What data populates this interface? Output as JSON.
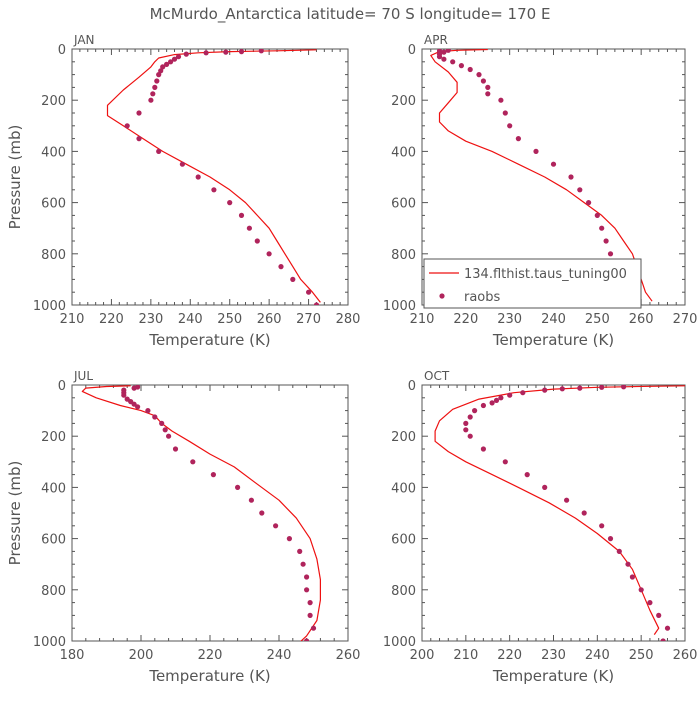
{
  "figure": {
    "title": "McMurdo_Antarctica   latitude=  70 S  longitude=  170 E"
  },
  "colors": {
    "model": "#ee1111",
    "obs": "#b0245c",
    "frame": "#555555",
    "text": "#555555"
  },
  "legend": {
    "model_label": "134.flthist.taus_tuning00",
    "obs_label": "raobs"
  },
  "chart_data": [
    {
      "type": "line",
      "panel_label": "JAN",
      "xlabel": "Temperature  (K)",
      "ylabel": "Pressure (mb)",
      "xlim": [
        210,
        280
      ],
      "ylim": [
        1000,
        0
      ],
      "xticks": [
        210,
        220,
        230,
        240,
        250,
        260,
        270,
        280
      ],
      "yticks": [
        0,
        200,
        400,
        600,
        800,
        1000
      ],
      "series": [
        {
          "name": "134.flthist.taus_tuning00",
          "kind": "line",
          "points": [
            [
              272,
              3
            ],
            [
              262,
              7
            ],
            [
              250,
              10
            ],
            [
              242,
              15
            ],
            [
              236,
              22
            ],
            [
              232,
              35
            ],
            [
              231,
              50
            ],
            [
              230,
              70
            ],
            [
              227,
              110
            ],
            [
              223,
              160
            ],
            [
              219,
              220
            ],
            [
              219,
              260
            ],
            [
              223,
              300
            ],
            [
              228,
              350
            ],
            [
              233,
              400
            ],
            [
              239,
              450
            ],
            [
              245,
              500
            ],
            [
              250,
              550
            ],
            [
              254,
              600
            ],
            [
              257,
              650
            ],
            [
              260,
              700
            ],
            [
              262,
              750
            ],
            [
              264,
              800
            ],
            [
              266,
              850
            ],
            [
              268,
              900
            ],
            [
              271,
              950
            ],
            [
              273,
              990
            ]
          ]
        },
        {
          "name": "raobs",
          "kind": "scatter",
          "points": [
            [
              272,
              1000
            ],
            [
              270,
              950
            ],
            [
              266,
              900
            ],
            [
              263,
              850
            ],
            [
              260,
              800
            ],
            [
              257,
              750
            ],
            [
              255,
              700
            ],
            [
              253,
              650
            ],
            [
              250,
              600
            ],
            [
              246,
              550
            ],
            [
              242,
              500
            ],
            [
              238,
              450
            ],
            [
              232,
              400
            ],
            [
              227,
              350
            ],
            [
              224,
              300
            ],
            [
              227,
              250
            ],
            [
              230,
              200
            ],
            [
              230.5,
              175
            ],
            [
              231,
              150
            ],
            [
              231.5,
              125
            ],
            [
              232,
              100
            ],
            [
              232.5,
              85
            ],
            [
              233,
              70
            ],
            [
              234,
              60
            ],
            [
              235,
              50
            ],
            [
              236,
              40
            ],
            [
              237,
              30
            ],
            [
              239,
              20
            ],
            [
              244,
              15
            ],
            [
              249,
              12
            ],
            [
              253,
              10
            ],
            [
              258,
              7
            ]
          ]
        }
      ]
    },
    {
      "type": "line",
      "panel_label": "APR",
      "xlabel": "Temperature  (K)",
      "ylabel": "",
      "xlim": [
        210,
        270
      ],
      "ylim": [
        1000,
        0
      ],
      "xticks": [
        210,
        220,
        230,
        240,
        250,
        260,
        270
      ],
      "yticks": [
        0,
        200,
        400,
        600,
        800,
        1000
      ],
      "legend_position": "lower-right",
      "series": [
        {
          "name": "134.flthist.taus_tuning00",
          "kind": "line",
          "points": [
            [
              225,
              2
            ],
            [
              218,
              5
            ],
            [
              214,
              10
            ],
            [
              212,
              25
            ],
            [
              213,
              50
            ],
            [
              216,
              90
            ],
            [
              218,
              130
            ],
            [
              218,
              170
            ],
            [
              216,
              210
            ],
            [
              214,
              250
            ],
            [
              214,
              285
            ],
            [
              216,
              320
            ],
            [
              220,
              360
            ],
            [
              226,
              400
            ],
            [
              232,
              450
            ],
            [
              238,
              500
            ],
            [
              243,
              550
            ],
            [
              247,
              600
            ],
            [
              251,
              650
            ],
            [
              254,
              700
            ],
            [
              256,
              750
            ],
            [
              258,
              800
            ],
            [
              259,
              850
            ],
            [
              260,
              900
            ],
            [
              261,
              950
            ],
            [
              262.5,
              985
            ]
          ]
        },
        {
          "name": "raobs",
          "kind": "scatter",
          "points": [
            [
              256.5,
              1000
            ],
            [
              256.5,
              950
            ],
            [
              256,
              900
            ],
            [
              253,
              850
            ],
            [
              253,
              800
            ],
            [
              252,
              750
            ],
            [
              251,
              700
            ],
            [
              250,
              650
            ],
            [
              248,
              600
            ],
            [
              246,
              550
            ],
            [
              244,
              500
            ],
            [
              240,
              450
            ],
            [
              236,
              400
            ],
            [
              232,
              350
            ],
            [
              230,
              300
            ],
            [
              229,
              250
            ],
            [
              228,
              200
            ],
            [
              225,
              175
            ],
            [
              225,
              150
            ],
            [
              224,
              125
            ],
            [
              223,
              100
            ],
            [
              221,
              80
            ],
            [
              219,
              65
            ],
            [
              217,
              50
            ],
            [
              215,
              40
            ],
            [
              214,
              30
            ],
            [
              214,
              20
            ],
            [
              215,
              12
            ],
            [
              214,
              8
            ],
            [
              216,
              5
            ]
          ]
        }
      ]
    },
    {
      "type": "line",
      "panel_label": "JUL",
      "xlabel": "Temperature  (K)",
      "ylabel": "Pressure (mb)",
      "xlim": [
        180,
        260
      ],
      "ylim": [
        1000,
        0
      ],
      "xticks": [
        180,
        200,
        220,
        240,
        260
      ],
      "yticks": [
        0,
        200,
        400,
        600,
        800,
        1000
      ],
      "series": [
        {
          "name": "134.flthist.taus_tuning00",
          "kind": "line",
          "points": [
            [
              197,
              3
            ],
            [
              190,
              6
            ],
            [
              184,
              12
            ],
            [
              183,
              25
            ],
            [
              187,
              50
            ],
            [
              194,
              80
            ],
            [
              200,
              100
            ],
            [
              204,
              120
            ],
            [
              206,
              150
            ],
            [
              209,
              180
            ],
            [
              214,
              220
            ],
            [
              220,
              270
            ],
            [
              227,
              320
            ],
            [
              233,
              380
            ],
            [
              240,
              450
            ],
            [
              245,
              520
            ],
            [
              249,
              600
            ],
            [
              251,
              680
            ],
            [
              252,
              760
            ],
            [
              252,
              840
            ],
            [
              251,
              920
            ],
            [
              248,
              980
            ],
            [
              246,
              1005
            ]
          ]
        },
        {
          "name": "raobs",
          "kind": "scatter",
          "points": [
            [
              248,
              1000
            ],
            [
              250,
              950
            ],
            [
              249,
              900
            ],
            [
              249,
              850
            ],
            [
              248,
              800
            ],
            [
              248,
              750
            ],
            [
              247,
              700
            ],
            [
              246,
              650
            ],
            [
              243,
              600
            ],
            [
              239,
              550
            ],
            [
              235,
              500
            ],
            [
              232,
              450
            ],
            [
              228,
              400
            ],
            [
              221,
              350
            ],
            [
              215,
              300
            ],
            [
              210,
              250
            ],
            [
              208,
              200
            ],
            [
              207,
              175
            ],
            [
              206,
              150
            ],
            [
              204,
              125
            ],
            [
              202,
              100
            ],
            [
              199,
              85
            ],
            [
              198,
              75
            ],
            [
              197,
              65
            ],
            [
              196,
              55
            ],
            [
              195,
              40
            ],
            [
              195,
              30
            ],
            [
              195,
              20
            ],
            [
              198,
              12
            ],
            [
              199,
              8
            ]
          ]
        }
      ]
    },
    {
      "type": "line",
      "panel_label": "OCT",
      "xlabel": "Temperature  (K)",
      "ylabel": "",
      "xlim": [
        200,
        260
      ],
      "ylim": [
        1000,
        0
      ],
      "xticks": [
        200,
        210,
        220,
        230,
        240,
        250,
        260
      ],
      "yticks": [
        0,
        200,
        400,
        600,
        800,
        1000
      ],
      "series": [
        {
          "name": "134.flthist.taus_tuning00",
          "kind": "line",
          "points": [
            [
              260,
              3
            ],
            [
              252,
              5
            ],
            [
              240,
              9
            ],
            [
              230,
              16
            ],
            [
              221,
              30
            ],
            [
              213,
              55
            ],
            [
              207,
              95
            ],
            [
              204,
              140
            ],
            [
              203,
              180
            ],
            [
              203,
              220
            ],
            [
              206,
              260
            ],
            [
              210,
              300
            ],
            [
              216,
              350
            ],
            [
              222,
              400
            ],
            [
              229,
              460
            ],
            [
              235,
              520
            ],
            [
              240,
              580
            ],
            [
              245,
              650
            ],
            [
              248,
              720
            ],
            [
              250,
              800
            ],
            [
              252,
              880
            ],
            [
              254,
              950
            ],
            [
              253,
              975
            ]
          ]
        },
        {
          "name": "raobs",
          "kind": "scatter",
          "points": [
            [
              255,
              1000
            ],
            [
              256,
              950
            ],
            [
              254,
              900
            ],
            [
              252,
              850
            ],
            [
              250,
              800
            ],
            [
              248,
              750
            ],
            [
              247,
              700
            ],
            [
              245,
              650
            ],
            [
              243,
              600
            ],
            [
              241,
              550
            ],
            [
              237,
              500
            ],
            [
              233,
              450
            ],
            [
              228,
              400
            ],
            [
              224,
              350
            ],
            [
              219,
              300
            ],
            [
              214,
              250
            ],
            [
              211,
              200
            ],
            [
              210,
              175
            ],
            [
              210,
              150
            ],
            [
              211,
              125
            ],
            [
              212,
              100
            ],
            [
              214,
              80
            ],
            [
              216,
              70
            ],
            [
              217,
              60
            ],
            [
              218,
              50
            ],
            [
              220,
              40
            ],
            [
              223,
              30
            ],
            [
              228,
              20
            ],
            [
              232,
              15
            ],
            [
              236,
              12
            ],
            [
              241,
              9
            ],
            [
              246,
              7
            ]
          ]
        }
      ]
    }
  ]
}
